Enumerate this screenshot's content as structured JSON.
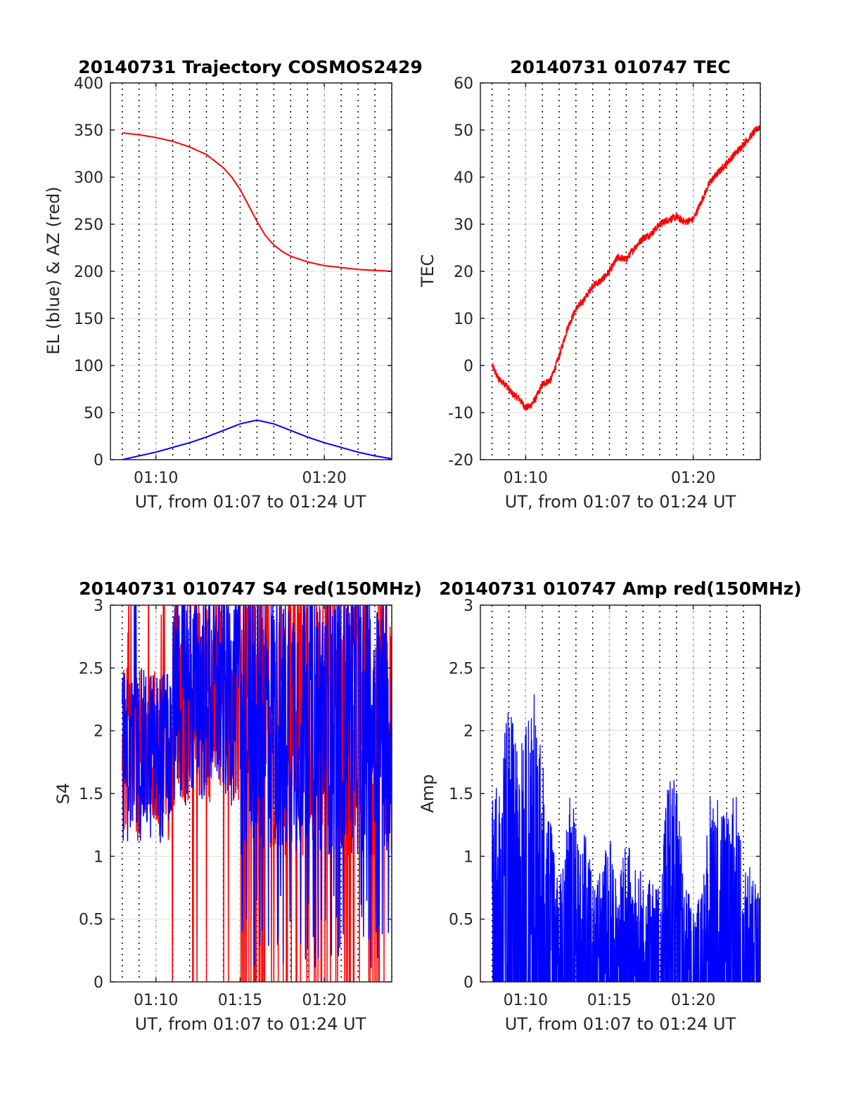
{
  "colors": {
    "red": "#ff0000",
    "blue": "#0000ff",
    "grid": "#dcdcdc",
    "axis": "#262626"
  },
  "chart_data": [
    {
      "type": "line",
      "title": "20140731 Trajectory COSMOS2429",
      "xlabel": "UT, from 01:07 to 01:24 UT",
      "ylabel": "EL (blue) & AZ (red)",
      "xlim": [
        7.3,
        24.0
      ],
      "ylim": [
        0,
        400
      ],
      "x_unit": "minutes after 01:00 UT",
      "xticks": [
        10,
        20
      ],
      "xtick_labels": [
        "01:10",
        "01:20"
      ],
      "yticks": [
        0,
        50,
        100,
        150,
        200,
        250,
        300,
        350,
        400
      ],
      "ytick_labels": [
        "0",
        "50",
        "100",
        "150",
        "200",
        "250",
        "300",
        "350",
        "400"
      ],
      "grid": true,
      "series": [
        {
          "color": "#ff0000",
          "x": [
            8.0,
            9.0,
            10.0,
            11.0,
            12.0,
            13.0,
            14.0,
            14.5,
            15.0,
            15.5,
            16.0,
            16.5,
            17.0,
            17.5,
            18.0,
            19.0,
            20.0,
            21.0,
            22.0,
            23.0,
            24.0
          ],
          "values": [
            347,
            345,
            342,
            338,
            332,
            324,
            310,
            300,
            287,
            270,
            253,
            238,
            228,
            221,
            216,
            210,
            206,
            204,
            202,
            201,
            200
          ]
        },
        {
          "color": "#0000ff",
          "x": [
            8.0,
            9.0,
            10.0,
            11.0,
            12.0,
            13.0,
            14.0,
            15.0,
            16.0,
            17.0,
            18.0,
            19.0,
            20.0,
            21.0,
            22.0,
            23.0,
            24.0
          ],
          "values": [
            0,
            4,
            8,
            13,
            18,
            24,
            31,
            38,
            42,
            38,
            31,
            24,
            18,
            13,
            8,
            4,
            1
          ]
        }
      ]
    },
    {
      "type": "line",
      "title": "20140731 010747 TEC",
      "xlabel": "UT, from 01:07 to 01:24 UT",
      "ylabel": "TEC",
      "xlim": [
        7.3,
        24.0
      ],
      "ylim": [
        -20,
        60
      ],
      "x_unit": "minutes after 01:00 UT",
      "xticks": [
        10,
        20
      ],
      "xtick_labels": [
        "01:10",
        "01:20"
      ],
      "yticks": [
        -20,
        -10,
        0,
        10,
        20,
        30,
        40,
        50,
        60
      ],
      "ytick_labels": [
        "-20",
        "-10",
        "0",
        "10",
        "20",
        "30",
        "40",
        "50",
        "60"
      ],
      "grid": true,
      "series": [
        {
          "color": "#ff0000",
          "x": [
            8.0,
            8.4,
            8.8,
            9.2,
            9.6,
            10.0,
            10.3,
            10.6,
            11.0,
            11.5,
            12.0,
            12.5,
            13.0,
            13.5,
            14.0,
            14.5,
            15.0,
            15.5,
            16.0,
            16.5,
            17.0,
            17.5,
            18.0,
            18.5,
            19.0,
            19.5,
            20.0,
            20.5,
            21.0,
            21.5,
            22.0,
            22.5,
            23.0,
            23.5,
            24.0
          ],
          "values": [
            0,
            -3,
            -4,
            -6,
            -7,
            -9,
            -8.5,
            -7,
            -4,
            -3,
            2,
            8,
            12,
            14,
            17,
            18,
            20,
            23,
            22.5,
            25,
            27,
            28,
            30,
            31,
            31.5,
            30.5,
            31,
            35,
            39,
            41,
            43,
            45,
            47,
            49,
            51
          ]
        }
      ]
    },
    {
      "type": "line",
      "title": "20140731 010747 S4 red(150MHz)",
      "xlabel": "UT, from 01:07 to 01:24 UT",
      "ylabel": "S4",
      "xlim": [
        7.3,
        24.0
      ],
      "ylim": [
        0,
        3
      ],
      "x_unit": "minutes after 01:00 UT",
      "xticks": [
        10,
        15,
        20
      ],
      "xtick_labels": [
        "01:10",
        "01:15",
        "01:20"
      ],
      "yticks": [
        0,
        0.5,
        1,
        1.5,
        2,
        2.5,
        3
      ],
      "ytick_labels": [
        "0",
        "0.5",
        "1",
        "1.5",
        "2",
        "2.5",
        "3"
      ],
      "grid": true,
      "series": [
        {
          "color": "#ff0000",
          "style": "dense noisy trace, frequent excursions to 0 after 01:15",
          "x_range": [
            8.0,
            24.0
          ],
          "typical_range": [
            1.0,
            3.0
          ]
        },
        {
          "color": "#0000ff",
          "style": "dense noisy trace, mostly 1.0-3.0",
          "x_range": [
            8.0,
            24.0
          ],
          "typical_range": [
            1.0,
            3.0
          ]
        }
      ]
    },
    {
      "type": "line",
      "title": "20140731 010747 Amp red(150MHz)",
      "xlabel": "UT, from 01:07 to 01:24 UT",
      "ylabel": "Amp",
      "xlim": [
        7.3,
        24.0
      ],
      "ylim": [
        0,
        3
      ],
      "x_unit": "minutes after 01:00 UT",
      "xticks": [
        10,
        15,
        20
      ],
      "xtick_labels": [
        "01:10",
        "01:15",
        "01:20"
      ],
      "yticks": [
        0,
        0.5,
        1,
        1.5,
        2,
        2.5,
        3
      ],
      "ytick_labels": [
        "0",
        "0.5",
        "1",
        "1.5",
        "2",
        "2.5",
        "3"
      ],
      "grid": true,
      "series": [
        {
          "color": "#0000ff",
          "style": "dense spiky trace from 0",
          "envelope_x": [
            8.0,
            8.5,
            9.0,
            9.5,
            10.0,
            10.5,
            11.0,
            11.5,
            12.0,
            12.5,
            13.0,
            13.5,
            14.0,
            14.5,
            15.0,
            15.5,
            16.0,
            16.5,
            17.0,
            17.5,
            18.0,
            18.5,
            19.0,
            19.5,
            20.0,
            20.5,
            21.0,
            21.5,
            22.0,
            22.5,
            23.0,
            23.5,
            24.0
          ],
          "envelope_max": [
            1.5,
            1.7,
            2.3,
            1.9,
            2.1,
            2.3,
            1.8,
            1.3,
            0.7,
            1.6,
            1.3,
            1.3,
            0.8,
            0.9,
            1.2,
            0.7,
            1.2,
            0.9,
            0.9,
            0.8,
            0.8,
            1.7,
            1.6,
            0.8,
            0.6,
            0.7,
            1.5,
            1.5,
            1.4,
            1.6,
            1.0,
            0.9,
            0.7
          ]
        }
      ]
    }
  ]
}
